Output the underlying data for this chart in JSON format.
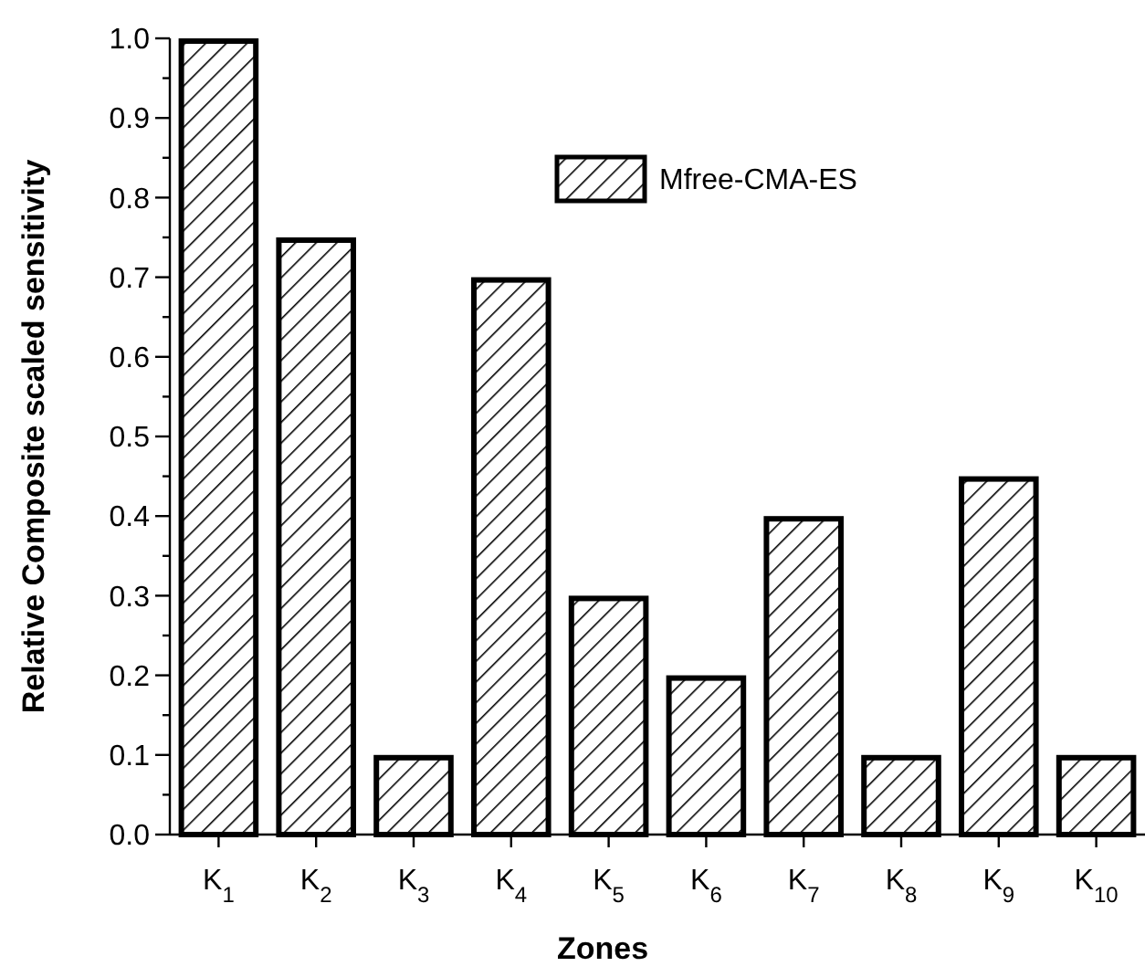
{
  "chart_data": {
    "type": "bar",
    "xlabel": "Zones",
    "ylabel": "Relative Composite scaled sensitivity",
    "categories": [
      "K$_{1}$",
      "K$_{2}$",
      "K$_{3}$",
      "K$_{4}$",
      "K$_{5}$",
      "K$_{6}$",
      "K$_{7}$",
      "K$_{8}$",
      "K$_{9}$",
      "K$_{10}$"
    ],
    "series": [
      {
        "name": "Mfree-CMA-ES",
        "color": "#000000",
        "values": [
          1.0,
          0.75,
          0.1,
          0.7,
          0.3,
          0.2,
          0.4,
          0.1,
          0.45,
          0.1
        ]
      }
    ],
    "ylim": [
      0,
      1.0
    ],
    "yticks": [
      {
        "value": 0,
        "label": "0.0"
      },
      {
        "value": 0.05,
        "label": null
      },
      0.1,
      {
        "value": 0.15,
        "label": null
      },
      0.2,
      {
        "value": 0.25,
        "label": null
      },
      0.3,
      {
        "value": 0.35,
        "label": null
      },
      0.4,
      {
        "value": 0.45,
        "label": null
      },
      0.5,
      {
        "value": 0.55,
        "label": null
      },
      0.6,
      {
        "value": 0.65,
        "label": null
      },
      0.7,
      {
        "value": 0.75,
        "label": null
      },
      0.8,
      {
        "value": 0.85,
        "label": null
      },
      0.9,
      {
        "value": 0.95,
        "label": null
      },
      {
        "value": 1,
        "label": "1.0"
      }
    ],
    "legend": "top right",
    "grid": false
  }
}
